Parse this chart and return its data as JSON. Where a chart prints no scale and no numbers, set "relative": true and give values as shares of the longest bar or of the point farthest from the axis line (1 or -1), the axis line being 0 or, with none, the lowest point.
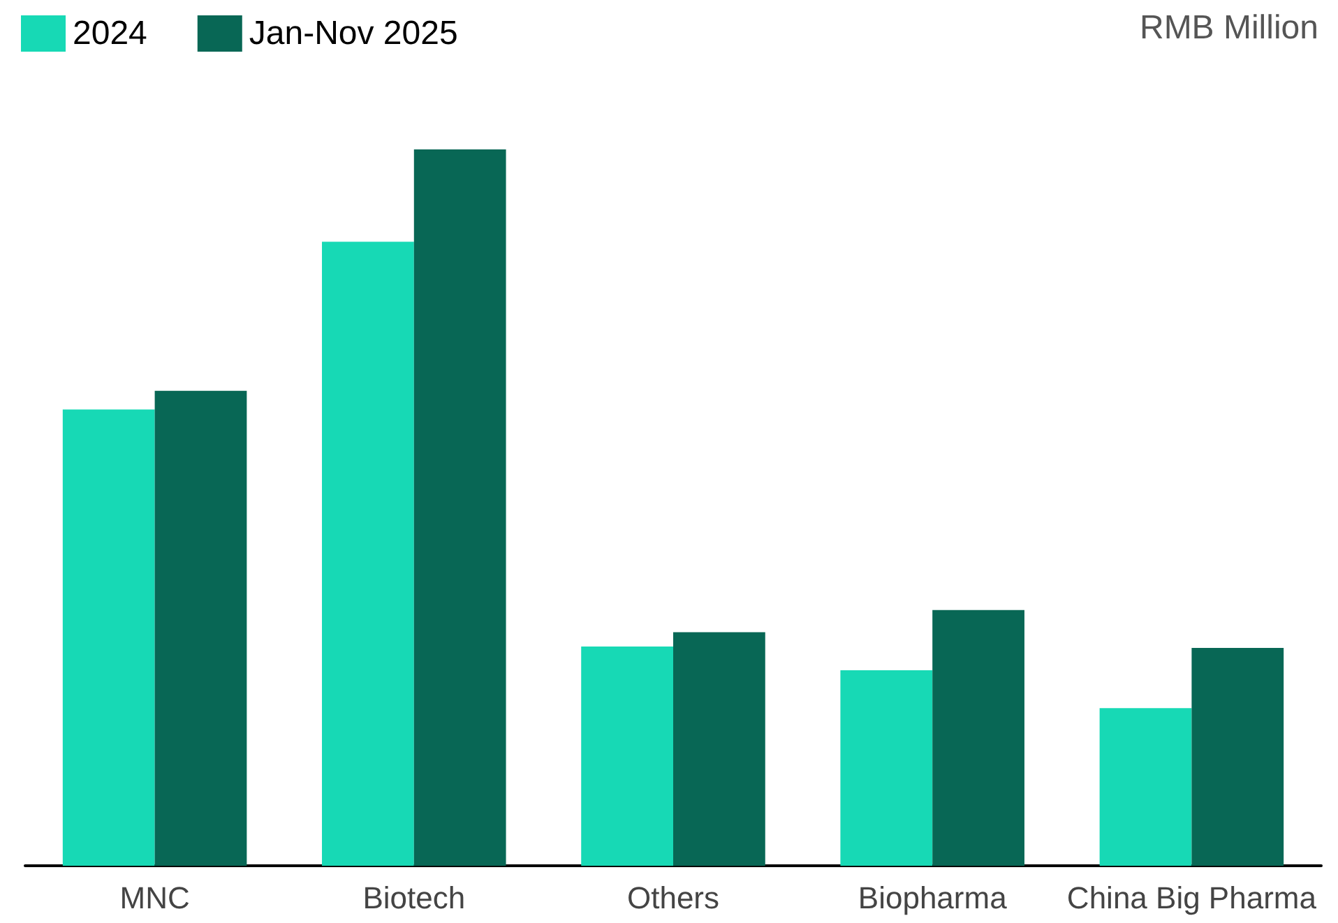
{
  "chart_data": {
    "type": "bar",
    "relative": true,
    "ylabel": "RMB Million",
    "categories": [
      "MNC",
      "Biotech",
      "Others",
      "Biopharma",
      "China Big Pharma"
    ],
    "series": [
      {
        "name": "2024",
        "color": "#17d9b5",
        "values": [
          0.637,
          0.871,
          0.306,
          0.273,
          0.22
        ]
      },
      {
        "name": "Jan-Nov 2025",
        "color": "#086755",
        "values": [
          0.663,
          1,
          0.326,
          0.357,
          0.304
        ]
      }
    ],
    "legend": "top left"
  }
}
